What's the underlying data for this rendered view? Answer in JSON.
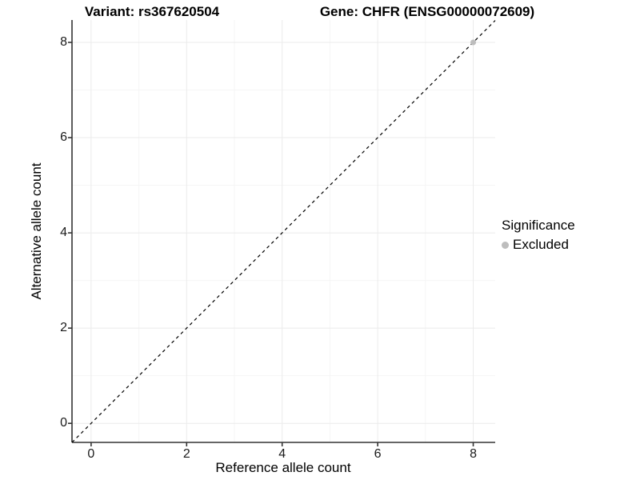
{
  "chart_data": {
    "type": "scatter",
    "title_left": "Variant: rs367620504",
    "title_right": "Gene: CHFR (ENSG00000072609)",
    "xlabel": "Reference allele count",
    "ylabel": "Alternative allele count",
    "x_ticks": [
      0,
      2,
      4,
      6,
      8
    ],
    "y_ticks": [
      0,
      2,
      4,
      6,
      8
    ],
    "x_minor_ticks": [
      1,
      3,
      5,
      7
    ],
    "y_minor_ticks": [
      1,
      3,
      5,
      7
    ],
    "xlim": [
      -0.4,
      8.46
    ],
    "ylim": [
      -0.4,
      8.47
    ],
    "grid": "major+minor",
    "points": [
      {
        "x": 8,
        "y": 8,
        "significance": "Excluded"
      }
    ],
    "reference_line": {
      "slope": 1,
      "intercept": 0,
      "style": "dashed",
      "color": "#000000"
    },
    "legend": {
      "position": "right",
      "title": "Significance",
      "items": [
        {
          "label": "Excluded",
          "color": "#BDBDBD",
          "marker": "circle"
        }
      ]
    },
    "colors": {
      "point_excluded": "#BDBDBD",
      "grid_major": "#EBEBEB",
      "grid_minor": "#F5F5F5",
      "axis_line": "#333333",
      "tick": "#333333",
      "text": "#000000",
      "background": "#FFFFFF"
    }
  }
}
